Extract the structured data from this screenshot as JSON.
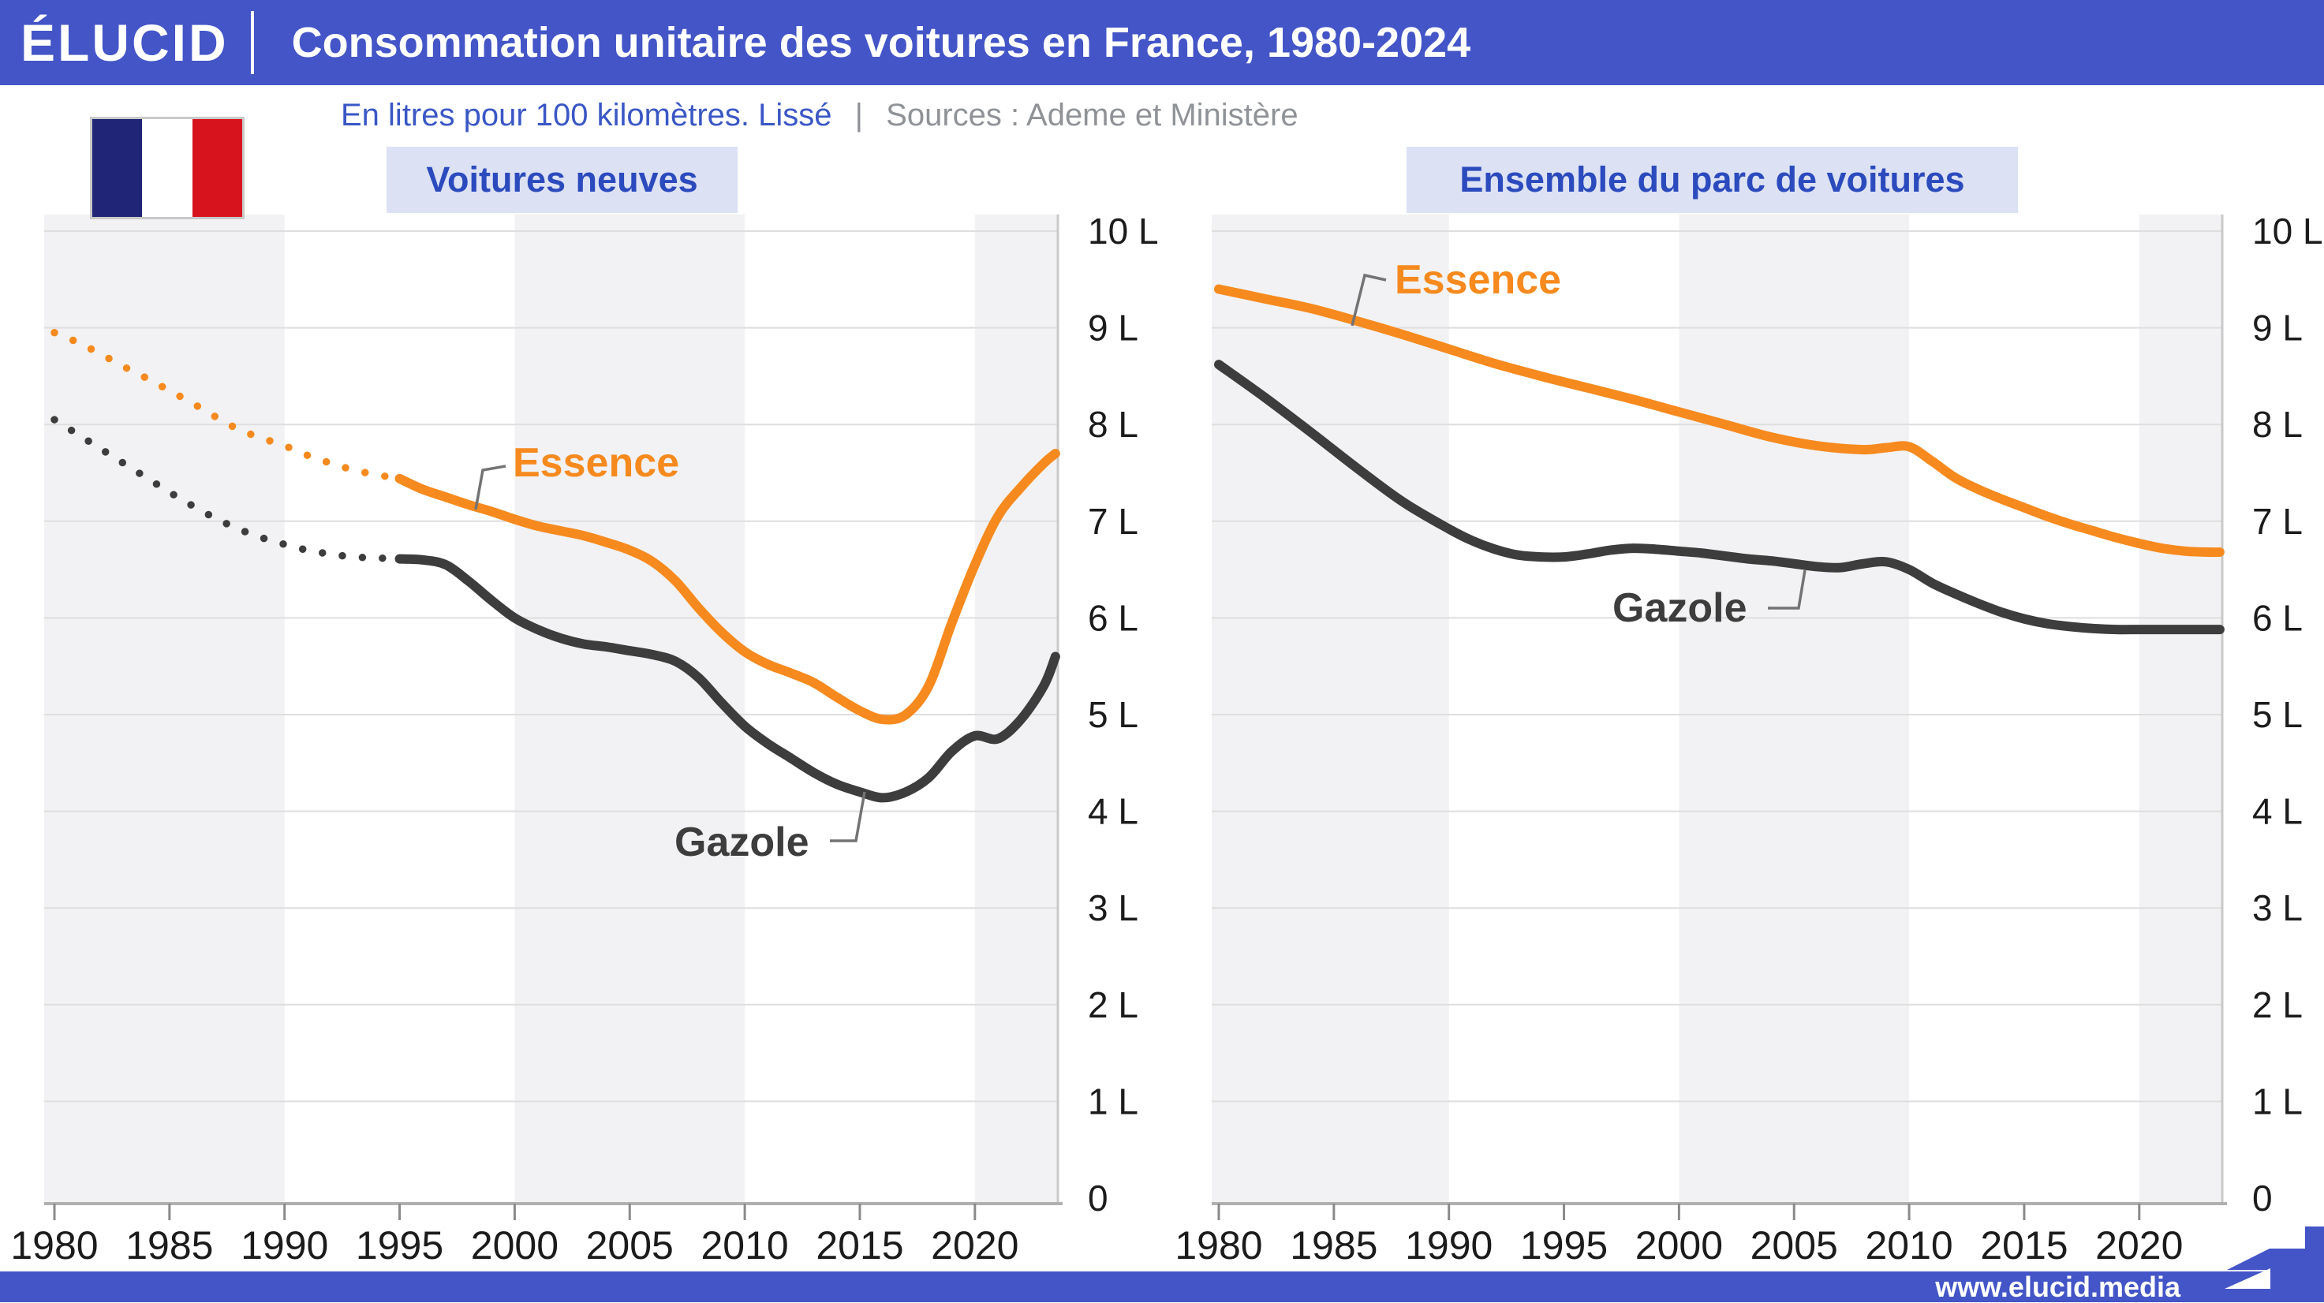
{
  "header": {
    "logo": "ÉLUCID",
    "title": "Consommation unitaire des voitures en France, 1980-2024"
  },
  "subtitle": {
    "description": "En litres pour 100 kilomètres. Lissé",
    "separator": "|",
    "sources": "Sources : Ademe et Ministère"
  },
  "flag": {
    "name": "drapeau-france",
    "colors": [
      "#202577",
      "#ffffff",
      "#d7141e"
    ]
  },
  "footer": {
    "url": "www.elucid.media"
  },
  "colors": {
    "header_blue": "#4355c7",
    "chip_bg": "#dce1f4",
    "chip_text": "#2b4abd",
    "subtitle_blue": "#3a57c5",
    "subtitle_gray": "#8f9296",
    "essence": "#f68a1e",
    "gazole": "#3d3d3d",
    "gridline": "#dedede",
    "band": "#f2f2f4",
    "axis": "#b0b0b0",
    "tick": "#8a8a8a",
    "axis_label": "#1b1b1b",
    "leader": "#737373"
  },
  "chart_data": [
    {
      "type": "line",
      "title": "Voitures neuves",
      "ylabel": "litres / 100 km",
      "x_range": [
        1980,
        2023.5
      ],
      "y_range": [
        0,
        10
      ],
      "x_tick_labels": [
        "1980",
        "1985",
        "1990",
        "1995",
        "2000",
        "2005",
        "2010",
        "2015",
        "2020"
      ],
      "y_tick_labels": [
        "10 L",
        "9 L",
        "8 L",
        "7 L",
        "6 L",
        "5 L",
        "4 L",
        "3 L",
        "2 L",
        "1 L",
        "0"
      ],
      "shaded_decades": [
        [
          1978,
          1990
        ],
        [
          2000,
          2010
        ],
        [
          2020,
          2025
        ]
      ],
      "series": [
        {
          "name": "Essence",
          "color_key": "essence",
          "dotted_until": 1995,
          "points": [
            [
              1980,
              8.95
            ],
            [
              1981,
              8.85
            ],
            [
              1982,
              8.73
            ],
            [
              1983,
              8.6
            ],
            [
              1984,
              8.48
            ],
            [
              1985,
              8.35
            ],
            [
              1986,
              8.22
            ],
            [
              1987,
              8.08
            ],
            [
              1988,
              7.95
            ],
            [
              1989,
              7.86
            ],
            [
              1990,
              7.78
            ],
            [
              1991,
              7.68
            ],
            [
              1992,
              7.6
            ],
            [
              1993,
              7.53
            ],
            [
              1994,
              7.48
            ],
            [
              1995,
              7.44
            ],
            [
              1996,
              7.33
            ],
            [
              1997,
              7.25
            ],
            [
              1998,
              7.17
            ],
            [
              1999,
              7.1
            ],
            [
              2000,
              7.02
            ],
            [
              2001,
              6.95
            ],
            [
              2002,
              6.9
            ],
            [
              2003,
              6.85
            ],
            [
              2004,
              6.78
            ],
            [
              2005,
              6.7
            ],
            [
              2006,
              6.58
            ],
            [
              2007,
              6.38
            ],
            [
              2008,
              6.1
            ],
            [
              2009,
              5.85
            ],
            [
              2010,
              5.65
            ],
            [
              2011,
              5.52
            ],
            [
              2012,
              5.43
            ],
            [
              2013,
              5.33
            ],
            [
              2014,
              5.18
            ],
            [
              2015,
              5.04
            ],
            [
              2016,
              4.95
            ],
            [
              2017,
              5.0
            ],
            [
              2018,
              5.3
            ],
            [
              2019,
              5.95
            ],
            [
              2020,
              6.55
            ],
            [
              2021,
              7.05
            ],
            [
              2022,
              7.35
            ],
            [
              2023,
              7.6
            ],
            [
              2023.5,
              7.7
            ]
          ]
        },
        {
          "name": "Gazole",
          "color_key": "gazole",
          "dotted_until": 1995,
          "points": [
            [
              1980,
              8.05
            ],
            [
              1981,
              7.9
            ],
            [
              1982,
              7.75
            ],
            [
              1983,
              7.6
            ],
            [
              1984,
              7.45
            ],
            [
              1985,
              7.3
            ],
            [
              1986,
              7.16
            ],
            [
              1987,
              7.03
            ],
            [
              1988,
              6.92
            ],
            [
              1989,
              6.83
            ],
            [
              1990,
              6.76
            ],
            [
              1991,
              6.7
            ],
            [
              1992,
              6.66
            ],
            [
              1993,
              6.63
            ],
            [
              1994,
              6.62
            ],
            [
              1995,
              6.61
            ],
            [
              1996,
              6.6
            ],
            [
              1997,
              6.55
            ],
            [
              1998,
              6.38
            ],
            [
              1999,
              6.18
            ],
            [
              2000,
              6.0
            ],
            [
              2001,
              5.88
            ],
            [
              2002,
              5.79
            ],
            [
              2003,
              5.73
            ],
            [
              2004,
              5.7
            ],
            [
              2005,
              5.66
            ],
            [
              2006,
              5.62
            ],
            [
              2007,
              5.55
            ],
            [
              2008,
              5.38
            ],
            [
              2009,
              5.12
            ],
            [
              2010,
              4.88
            ],
            [
              2011,
              4.7
            ],
            [
              2012,
              4.55
            ],
            [
              2013,
              4.4
            ],
            [
              2014,
              4.28
            ],
            [
              2015,
              4.2
            ],
            [
              2016,
              4.14
            ],
            [
              2017,
              4.2
            ],
            [
              2018,
              4.35
            ],
            [
              2019,
              4.62
            ],
            [
              2020,
              4.78
            ],
            [
              2021,
              4.75
            ],
            [
              2022,
              4.95
            ],
            [
              2023,
              5.3
            ],
            [
              2023.5,
              5.6
            ]
          ]
        }
      ]
    },
    {
      "type": "line",
      "title": "Ensemble du parc de voitures",
      "ylabel": "litres / 100 km",
      "x_range": [
        1980,
        2023.5
      ],
      "y_range": [
        0,
        10
      ],
      "x_tick_labels": [
        "1980",
        "1985",
        "1990",
        "1995",
        "2000",
        "2005",
        "2010",
        "2015",
        "2020"
      ],
      "y_tick_labels": [
        "10 L",
        "9 L",
        "8 L",
        "7 L",
        "6 L",
        "5 L",
        "4 L",
        "3 L",
        "2 L",
        "1 L",
        "0"
      ],
      "shaded_decades": [
        [
          1978,
          1990
        ],
        [
          2000,
          2010
        ],
        [
          2020,
          2025
        ]
      ],
      "series": [
        {
          "name": "Essence",
          "color_key": "essence",
          "dotted_until": null,
          "points": [
            [
              1980,
              9.4
            ],
            [
              1982,
              9.3
            ],
            [
              1984,
              9.2
            ],
            [
              1986,
              9.07
            ],
            [
              1988,
              8.93
            ],
            [
              1990,
              8.78
            ],
            [
              1992,
              8.63
            ],
            [
              1994,
              8.5
            ],
            [
              1996,
              8.38
            ],
            [
              1998,
              8.26
            ],
            [
              2000,
              8.13
            ],
            [
              2002,
              8.0
            ],
            [
              2004,
              7.87
            ],
            [
              2006,
              7.78
            ],
            [
              2008,
              7.74
            ],
            [
              2009,
              7.76
            ],
            [
              2010,
              7.77
            ],
            [
              2011,
              7.62
            ],
            [
              2012,
              7.45
            ],
            [
              2013,
              7.33
            ],
            [
              2014,
              7.23
            ],
            [
              2015,
              7.14
            ],
            [
              2016,
              7.05
            ],
            [
              2017,
              6.97
            ],
            [
              2018,
              6.9
            ],
            [
              2019,
              6.83
            ],
            [
              2020,
              6.77
            ],
            [
              2021,
              6.72
            ],
            [
              2022,
              6.69
            ],
            [
              2023,
              6.68
            ],
            [
              2023.5,
              6.68
            ]
          ]
        },
        {
          "name": "Gazole",
          "color_key": "gazole",
          "dotted_until": null,
          "points": [
            [
              1980,
              8.62
            ],
            [
              1982,
              8.28
            ],
            [
              1984,
              7.92
            ],
            [
              1986,
              7.55
            ],
            [
              1988,
              7.2
            ],
            [
              1990,
              6.92
            ],
            [
              1991,
              6.8
            ],
            [
              1992,
              6.71
            ],
            [
              1993,
              6.65
            ],
            [
              1994,
              6.63
            ],
            [
              1995,
              6.63
            ],
            [
              1996,
              6.66
            ],
            [
              1997,
              6.7
            ],
            [
              1998,
              6.72
            ],
            [
              1999,
              6.71
            ],
            [
              2000,
              6.69
            ],
            [
              2001,
              6.67
            ],
            [
              2002,
              6.64
            ],
            [
              2003,
              6.61
            ],
            [
              2004,
              6.59
            ],
            [
              2005,
              6.56
            ],
            [
              2006,
              6.53
            ],
            [
              2007,
              6.52
            ],
            [
              2008,
              6.56
            ],
            [
              2009,
              6.58
            ],
            [
              2010,
              6.5
            ],
            [
              2011,
              6.36
            ],
            [
              2012,
              6.25
            ],
            [
              2013,
              6.15
            ],
            [
              2014,
              6.06
            ],
            [
              2015,
              5.99
            ],
            [
              2016,
              5.94
            ],
            [
              2017,
              5.91
            ],
            [
              2018,
              5.89
            ],
            [
              2019,
              5.88
            ],
            [
              2020,
              5.88
            ],
            [
              2021,
              5.88
            ],
            [
              2022,
              5.88
            ],
            [
              2023,
              5.88
            ],
            [
              2023.5,
              5.88
            ]
          ]
        }
      ]
    }
  ]
}
